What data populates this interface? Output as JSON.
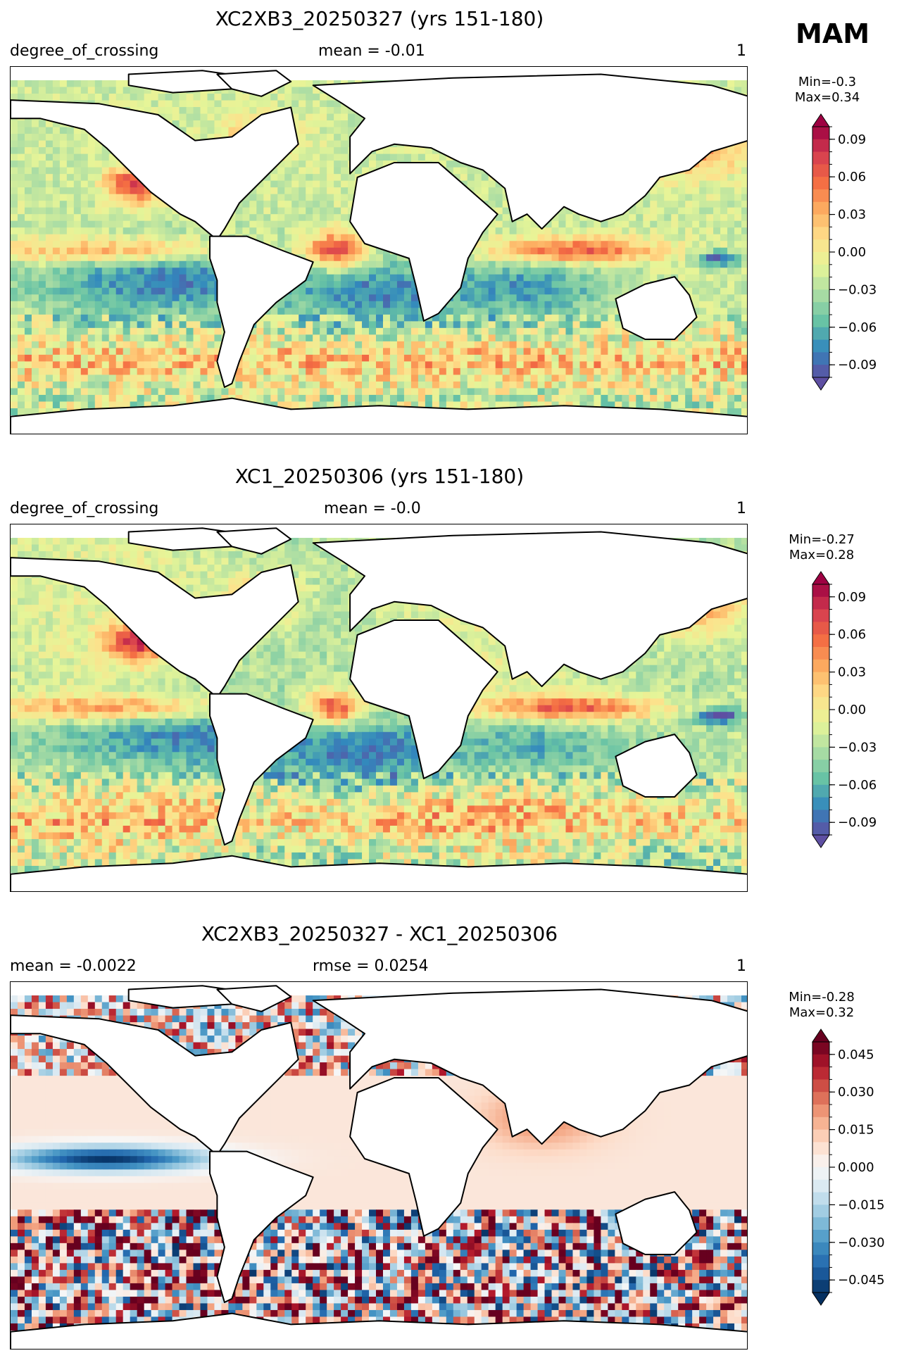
{
  "season": "MAM",
  "panels": [
    {
      "title": "XC2XB3_20250327 (yrs 151-180)",
      "left_text": "degree_of_crossing",
      "center_text": "mean = -0.01",
      "right_text": "1",
      "min_text": "Min=-0.3",
      "max_text": "Max=0.34",
      "colormap": "RdYlBu-spectral",
      "colorbar_ticks": [
        "0.09",
        "0.06",
        "0.03",
        "0.00",
        "−0.03",
        "−0.06",
        "−0.09"
      ]
    },
    {
      "title": "XC1_20250306 (yrs 151-180)",
      "left_text": "degree_of_crossing",
      "center_text": "mean = -0.0",
      "right_text": "1",
      "min_text": "Min=-0.27",
      "max_text": "Max=0.28",
      "colormap": "RdYlBu-spectral",
      "colorbar_ticks": [
        "0.09",
        "0.06",
        "0.03",
        "0.00",
        "−0.03",
        "−0.06",
        "−0.09"
      ]
    },
    {
      "title": "XC2XB3_20250327 - XC1_20250306",
      "left_text": "mean = -0.0022",
      "center_text": "rmse = 0.0254",
      "right_text": "1",
      "min_text": "Min=-0.28",
      "max_text": "Max=0.32",
      "colormap": "RdBu-diverging",
      "colorbar_ticks": [
        "0.045",
        "0.030",
        "0.015",
        "0.000",
        "−0.015",
        "−0.030",
        "−0.045"
      ]
    }
  ],
  "chart_data": [
    {
      "type": "heatmap",
      "title": "XC2XB3_20250327 (yrs 151-180)",
      "variable": "degree_of_crossing",
      "mean": -0.01,
      "min": -0.3,
      "max": 0.34,
      "colorbar_range": [
        -0.1,
        0.1
      ],
      "colorbar_ticks": [
        0.09,
        0.06,
        0.03,
        0.0,
        -0.03,
        -0.06,
        -0.09
      ]
    },
    {
      "type": "heatmap",
      "title": "XC1_20250306 (yrs 151-180)",
      "variable": "degree_of_crossing",
      "mean": -0.0,
      "min": -0.27,
      "max": 0.28,
      "colorbar_range": [
        -0.1,
        0.1
      ],
      "colorbar_ticks": [
        0.09,
        0.06,
        0.03,
        0.0,
        -0.03,
        -0.06,
        -0.09
      ]
    },
    {
      "type": "heatmap",
      "title": "XC2XB3_20250327 - XC1_20250306",
      "mean": -0.0022,
      "rmse": 0.0254,
      "min": -0.28,
      "max": 0.32,
      "colorbar_range": [
        -0.05,
        0.05
      ],
      "colorbar_ticks": [
        0.045,
        0.03,
        0.015,
        0.0,
        -0.015,
        -0.03,
        -0.045
      ]
    }
  ]
}
